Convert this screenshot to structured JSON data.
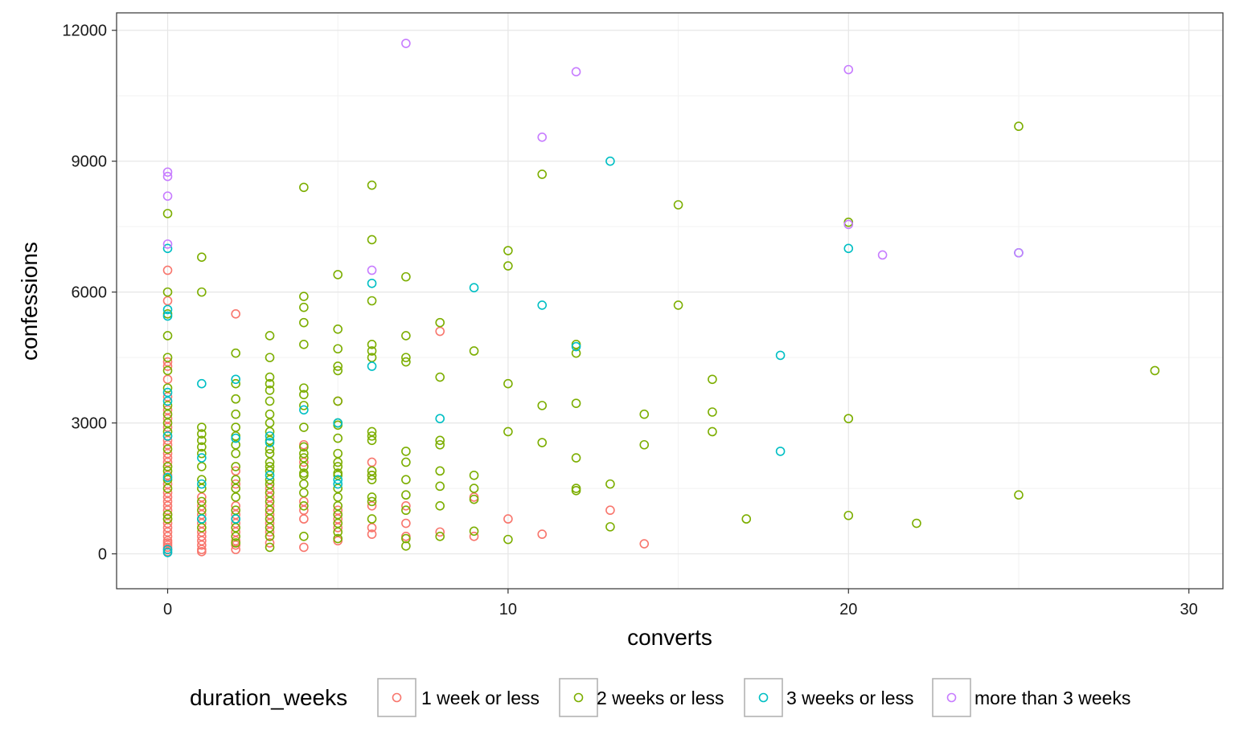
{
  "chart_data": {
    "type": "scatter",
    "title": "",
    "xlabel": "converts",
    "ylabel": "confessions",
    "xlim": [
      -1.5,
      31
    ],
    "ylim": [
      -800,
      12400
    ],
    "xticks": [
      0,
      10,
      20,
      30
    ],
    "yticks": [
      0,
      3000,
      6000,
      9000,
      12000
    ],
    "xtick_labels": [
      "0",
      "10",
      "20",
      "30"
    ],
    "ytick_labels": [
      "0",
      "3000",
      "6000",
      "9000",
      "12000"
    ],
    "grid": true,
    "legend": {
      "title": "duration_weeks",
      "position": "bottom",
      "entries": [
        "1 week or less",
        "2 weeks or less",
        "3 weeks or less",
        "more than 3 weeks"
      ]
    },
    "series": [
      {
        "name": "1 week or less",
        "color": "#F8766D",
        "points": [
          [
            0,
            6500
          ],
          [
            0,
            5800
          ],
          [
            0,
            4400
          ],
          [
            0,
            4300
          ],
          [
            0,
            4000
          ],
          [
            0,
            3600
          ],
          [
            0,
            3300
          ],
          [
            0,
            3100
          ],
          [
            0,
            2900
          ],
          [
            0,
            2700
          ],
          [
            0,
            2600
          ],
          [
            0,
            2500
          ],
          [
            0,
            2300
          ],
          [
            0,
            2200
          ],
          [
            0,
            2100
          ],
          [
            0,
            2000
          ],
          [
            0,
            1800
          ],
          [
            0,
            1600
          ],
          [
            0,
            1400
          ],
          [
            0,
            1300
          ],
          [
            0,
            1200
          ],
          [
            0,
            1100
          ],
          [
            0,
            1000
          ],
          [
            0,
            900
          ],
          [
            0,
            800
          ],
          [
            0,
            700
          ],
          [
            0,
            600
          ],
          [
            0,
            500
          ],
          [
            0,
            400
          ],
          [
            0,
            300
          ],
          [
            0,
            250
          ],
          [
            0,
            200
          ],
          [
            0,
            150
          ],
          [
            0,
            100
          ],
          [
            0,
            50
          ],
          [
            1,
            1300
          ],
          [
            1,
            1100
          ],
          [
            1,
            900
          ],
          [
            1,
            700
          ],
          [
            1,
            500
          ],
          [
            1,
            400
          ],
          [
            1,
            300
          ],
          [
            1,
            200
          ],
          [
            1,
            100
          ],
          [
            1,
            50
          ],
          [
            2,
            5500
          ],
          [
            2,
            1900
          ],
          [
            2,
            1600
          ],
          [
            2,
            1100
          ],
          [
            2,
            900
          ],
          [
            2,
            700
          ],
          [
            2,
            500
          ],
          [
            2,
            300
          ],
          [
            2,
            200
          ],
          [
            2,
            100
          ],
          [
            3,
            1500
          ],
          [
            3,
            1300
          ],
          [
            3,
            1100
          ],
          [
            3,
            900
          ],
          [
            3,
            700
          ],
          [
            3,
            500
          ],
          [
            3,
            400
          ],
          [
            3,
            250
          ],
          [
            4,
            2500
          ],
          [
            4,
            2100
          ],
          [
            4,
            1200
          ],
          [
            4,
            1000
          ],
          [
            4,
            800
          ],
          [
            4,
            150
          ],
          [
            5,
            3500
          ],
          [
            5,
            1000
          ],
          [
            5,
            800
          ],
          [
            5,
            600
          ],
          [
            5,
            300
          ],
          [
            6,
            2100
          ],
          [
            6,
            1800
          ],
          [
            6,
            1100
          ],
          [
            6,
            600
          ],
          [
            6,
            450
          ],
          [
            7,
            1100
          ],
          [
            7,
            700
          ],
          [
            7,
            400
          ],
          [
            8,
            5100
          ],
          [
            8,
            500
          ],
          [
            9,
            1300
          ],
          [
            9,
            400
          ],
          [
            10,
            800
          ],
          [
            11,
            450
          ],
          [
            13,
            1000
          ],
          [
            14,
            230
          ]
        ]
      },
      {
        "name": "2 weeks or less",
        "color": "#7CAE00",
        "points": [
          [
            0,
            7800
          ],
          [
            0,
            6000
          ],
          [
            0,
            5500
          ],
          [
            0,
            5000
          ],
          [
            0,
            4500
          ],
          [
            0,
            4200
          ],
          [
            0,
            3800
          ],
          [
            0,
            3400
          ],
          [
            0,
            3200
          ],
          [
            0,
            3000
          ],
          [
            0,
            2800
          ],
          [
            0,
            2400
          ],
          [
            0,
            2000
          ],
          [
            0,
            1900
          ],
          [
            0,
            1700
          ],
          [
            0,
            1500
          ],
          [
            0,
            900
          ],
          [
            0,
            800
          ],
          [
            1,
            6800
          ],
          [
            1,
            6000
          ],
          [
            1,
            2900
          ],
          [
            1,
            2750
          ],
          [
            1,
            2600
          ],
          [
            1,
            2450
          ],
          [
            1,
            2300
          ],
          [
            1,
            2000
          ],
          [
            1,
            1700
          ],
          [
            1,
            1500
          ],
          [
            1,
            1200
          ],
          [
            1,
            1000
          ],
          [
            1,
            800
          ],
          [
            1,
            600
          ],
          [
            2,
            4600
          ],
          [
            2,
            3900
          ],
          [
            2,
            3550
          ],
          [
            2,
            3200
          ],
          [
            2,
            2900
          ],
          [
            2,
            2700
          ],
          [
            2,
            2500
          ],
          [
            2,
            2300
          ],
          [
            2,
            2000
          ],
          [
            2,
            1700
          ],
          [
            2,
            1500
          ],
          [
            2,
            1300
          ],
          [
            2,
            1000
          ],
          [
            2,
            800
          ],
          [
            2,
            600
          ],
          [
            2,
            400
          ],
          [
            2,
            250
          ],
          [
            3,
            5000
          ],
          [
            3,
            4500
          ],
          [
            3,
            4050
          ],
          [
            3,
            3900
          ],
          [
            3,
            3750
          ],
          [
            3,
            3500
          ],
          [
            3,
            3200
          ],
          [
            3,
            3000
          ],
          [
            3,
            2800
          ],
          [
            3,
            2600
          ],
          [
            3,
            2400
          ],
          [
            3,
            2300
          ],
          [
            3,
            2100
          ],
          [
            3,
            2000
          ],
          [
            3,
            1900
          ],
          [
            3,
            1700
          ],
          [
            3,
            1600
          ],
          [
            3,
            1400
          ],
          [
            3,
            1200
          ],
          [
            3,
            1000
          ],
          [
            3,
            800
          ],
          [
            3,
            600
          ],
          [
            3,
            400
          ],
          [
            3,
            150
          ],
          [
            4,
            8400
          ],
          [
            4,
            5900
          ],
          [
            4,
            5650
          ],
          [
            4,
            5300
          ],
          [
            4,
            4800
          ],
          [
            4,
            3800
          ],
          [
            4,
            3650
          ],
          [
            4,
            3400
          ],
          [
            4,
            2900
          ],
          [
            4,
            2450
          ],
          [
            4,
            2300
          ],
          [
            4,
            2200
          ],
          [
            4,
            2000
          ],
          [
            4,
            1850
          ],
          [
            4,
            1800
          ],
          [
            4,
            1600
          ],
          [
            4,
            1400
          ],
          [
            4,
            1100
          ],
          [
            4,
            400
          ],
          [
            5,
            6400
          ],
          [
            5,
            5150
          ],
          [
            5,
            4700
          ],
          [
            5,
            4300
          ],
          [
            5,
            4200
          ],
          [
            5,
            3500
          ],
          [
            5,
            3000
          ],
          [
            5,
            2950
          ],
          [
            5,
            2650
          ],
          [
            5,
            2300
          ],
          [
            5,
            2100
          ],
          [
            5,
            2000
          ],
          [
            5,
            1850
          ],
          [
            5,
            1800
          ],
          [
            5,
            1500
          ],
          [
            5,
            1300
          ],
          [
            5,
            1100
          ],
          [
            5,
            900
          ],
          [
            5,
            700
          ],
          [
            5,
            500
          ],
          [
            5,
            350
          ],
          [
            6,
            8450
          ],
          [
            6,
            7200
          ],
          [
            6,
            5800
          ],
          [
            6,
            4800
          ],
          [
            6,
            4650
          ],
          [
            6,
            4500
          ],
          [
            6,
            2800
          ],
          [
            6,
            2700
          ],
          [
            6,
            2600
          ],
          [
            6,
            1900
          ],
          [
            6,
            1800
          ],
          [
            6,
            1700
          ],
          [
            6,
            1300
          ],
          [
            6,
            1200
          ],
          [
            6,
            800
          ],
          [
            7,
            6350
          ],
          [
            7,
            5000
          ],
          [
            7,
            4500
          ],
          [
            7,
            4400
          ],
          [
            7,
            2350
          ],
          [
            7,
            2100
          ],
          [
            7,
            1700
          ],
          [
            7,
            1350
          ],
          [
            7,
            1000
          ],
          [
            7,
            350
          ],
          [
            7,
            180
          ],
          [
            8,
            5300
          ],
          [
            8,
            4050
          ],
          [
            8,
            2600
          ],
          [
            8,
            2500
          ],
          [
            8,
            1900
          ],
          [
            8,
            1550
          ],
          [
            8,
            1100
          ],
          [
            8,
            400
          ],
          [
            9,
            4650
          ],
          [
            9,
            1800
          ],
          [
            9,
            1500
          ],
          [
            9,
            1250
          ],
          [
            9,
            520
          ],
          [
            10,
            6950
          ],
          [
            10,
            6600
          ],
          [
            10,
            3900
          ],
          [
            10,
            2800
          ],
          [
            10,
            330
          ],
          [
            11,
            8700
          ],
          [
            11,
            3400
          ],
          [
            11,
            2550
          ],
          [
            12,
            4800
          ],
          [
            12,
            4600
          ],
          [
            12,
            3450
          ],
          [
            12,
            2200
          ],
          [
            12,
            1500
          ],
          [
            12,
            1450
          ],
          [
            13,
            1600
          ],
          [
            13,
            620
          ],
          [
            14,
            3200
          ],
          [
            14,
            2500
          ],
          [
            15,
            8000
          ],
          [
            15,
            5700
          ],
          [
            16,
            4000
          ],
          [
            16,
            3250
          ],
          [
            16,
            2800
          ],
          [
            17,
            800
          ],
          [
            20,
            7600
          ],
          [
            20,
            3100
          ],
          [
            20,
            880
          ],
          [
            22,
            700
          ],
          [
            25,
            9800
          ],
          [
            25,
            1350
          ],
          [
            29,
            4200
          ]
        ]
      },
      {
        "name": "3 weeks or less",
        "color": "#00BFC4",
        "points": [
          [
            0,
            7000
          ],
          [
            0,
            5600
          ],
          [
            0,
            5450
          ],
          [
            0,
            3700
          ],
          [
            0,
            3500
          ],
          [
            0,
            2700
          ],
          [
            0,
            1750
          ],
          [
            0,
            100
          ],
          [
            0,
            30
          ],
          [
            1,
            3900
          ],
          [
            1,
            2200
          ],
          [
            1,
            1600
          ],
          [
            1,
            800
          ],
          [
            2,
            4000
          ],
          [
            2,
            2650
          ],
          [
            2,
            800
          ],
          [
            3,
            2700
          ],
          [
            3,
            2550
          ],
          [
            3,
            1800
          ],
          [
            4,
            3300
          ],
          [
            5,
            3000
          ],
          [
            5,
            1700
          ],
          [
            5,
            1600
          ],
          [
            6,
            6200
          ],
          [
            6,
            4300
          ],
          [
            8,
            3100
          ],
          [
            9,
            6100
          ],
          [
            11,
            5700
          ],
          [
            12,
            4750
          ],
          [
            13,
            9000
          ],
          [
            18,
            4550
          ],
          [
            18,
            2350
          ],
          [
            20,
            7000
          ],
          [
            25,
            6900
          ]
        ]
      },
      {
        "name": "more than 3 weeks",
        "color": "#C77CFF",
        "points": [
          [
            0,
            8750
          ],
          [
            0,
            8650
          ],
          [
            0,
            8200
          ],
          [
            0,
            7100
          ],
          [
            6,
            6500
          ],
          [
            7,
            11700
          ],
          [
            11,
            9550
          ],
          [
            12,
            11050
          ],
          [
            20,
            11100
          ],
          [
            20,
            7550
          ],
          [
            21,
            6850
          ],
          [
            25,
            6900
          ]
        ]
      }
    ]
  }
}
